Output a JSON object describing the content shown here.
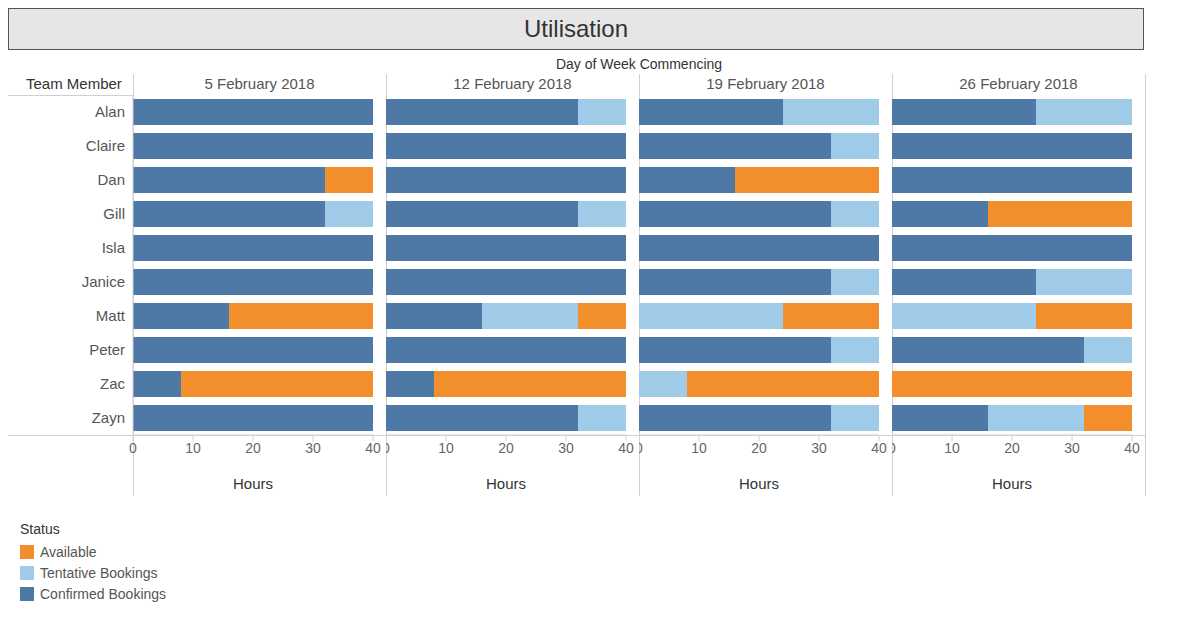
{
  "title": "Utilisation",
  "facet_label": "Day of Week Commencing",
  "row_label": "Team Member",
  "legend_title": "Status",
  "chart_data": [
    {
      "type": "bar",
      "title": "5 February 2018",
      "orientation": "horizontal",
      "stacked": true,
      "grid": false,
      "xlabel": "Hours",
      "xlim": [
        0,
        40
      ],
      "xticks": [
        0,
        10,
        20,
        30,
        40
      ],
      "categories": [
        "Alan",
        "Claire",
        "Dan",
        "Gill",
        "Isla",
        "Janice",
        "Matt",
        "Peter",
        "Zac",
        "Zayn"
      ],
      "series": [
        {
          "name": "Confirmed Bookings",
          "color": "#4e79a7",
          "values": [
            40,
            40,
            32,
            32,
            40,
            40,
            16,
            40,
            8,
            40
          ]
        },
        {
          "name": "Tentative Bookings",
          "color": "#a0cbe8",
          "values": [
            0,
            0,
            0,
            8,
            0,
            0,
            0,
            0,
            0,
            0
          ]
        },
        {
          "name": "Available",
          "color": "#f28e2b",
          "values": [
            0,
            0,
            8,
            0,
            0,
            0,
            24,
            0,
            32,
            0
          ]
        }
      ]
    },
    {
      "type": "bar",
      "title": "12 February 2018",
      "orientation": "horizontal",
      "stacked": true,
      "grid": false,
      "xlabel": "Hours",
      "xlim": [
        0,
        40
      ],
      "xticks": [
        0,
        10,
        20,
        30,
        40
      ],
      "categories": [
        "Alan",
        "Claire",
        "Dan",
        "Gill",
        "Isla",
        "Janice",
        "Matt",
        "Peter",
        "Zac",
        "Zayn"
      ],
      "series": [
        {
          "name": "Confirmed Bookings",
          "color": "#4e79a7",
          "values": [
            32,
            40,
            40,
            32,
            40,
            40,
            16,
            40,
            8,
            32
          ]
        },
        {
          "name": "Tentative Bookings",
          "color": "#a0cbe8",
          "values": [
            8,
            0,
            0,
            8,
            0,
            0,
            16,
            0,
            0,
            8
          ]
        },
        {
          "name": "Available",
          "color": "#f28e2b",
          "values": [
            0,
            0,
            0,
            0,
            0,
            0,
            8,
            0,
            32,
            0
          ]
        }
      ]
    },
    {
      "type": "bar",
      "title": "19 February 2018",
      "orientation": "horizontal",
      "stacked": true,
      "grid": false,
      "xlabel": "Hours",
      "xlim": [
        0,
        40
      ],
      "xticks": [
        0,
        10,
        20,
        30,
        40
      ],
      "categories": [
        "Alan",
        "Claire",
        "Dan",
        "Gill",
        "Isla",
        "Janice",
        "Matt",
        "Peter",
        "Zac",
        "Zayn"
      ],
      "series": [
        {
          "name": "Confirmed Bookings",
          "color": "#4e79a7",
          "values": [
            24,
            32,
            16,
            32,
            40,
            32,
            0,
            32,
            0,
            32
          ]
        },
        {
          "name": "Tentative Bookings",
          "color": "#a0cbe8",
          "values": [
            16,
            8,
            0,
            8,
            0,
            8,
            24,
            8,
            8,
            8
          ]
        },
        {
          "name": "Available",
          "color": "#f28e2b",
          "values": [
            0,
            0,
            24,
            0,
            0,
            0,
            16,
            0,
            32,
            0
          ]
        }
      ]
    },
    {
      "type": "bar",
      "title": "26 February 2018",
      "orientation": "horizontal",
      "stacked": true,
      "grid": false,
      "xlabel": "Hours",
      "xlim": [
        0,
        40
      ],
      "xticks": [
        0,
        10,
        20,
        30,
        40
      ],
      "categories": [
        "Alan",
        "Claire",
        "Dan",
        "Gill",
        "Isla",
        "Janice",
        "Matt",
        "Peter",
        "Zac",
        "Zayn"
      ],
      "series": [
        {
          "name": "Confirmed Bookings",
          "color": "#4e79a7",
          "values": [
            24,
            40,
            40,
            16,
            40,
            24,
            0,
            32,
            0,
            16
          ]
        },
        {
          "name": "Tentative Bookings",
          "color": "#a0cbe8",
          "values": [
            16,
            0,
            0,
            0,
            0,
            16,
            24,
            8,
            0,
            16
          ]
        },
        {
          "name": "Available",
          "color": "#f28e2b",
          "values": [
            0,
            0,
            0,
            24,
            0,
            0,
            16,
            0,
            40,
            8
          ]
        }
      ]
    }
  ]
}
